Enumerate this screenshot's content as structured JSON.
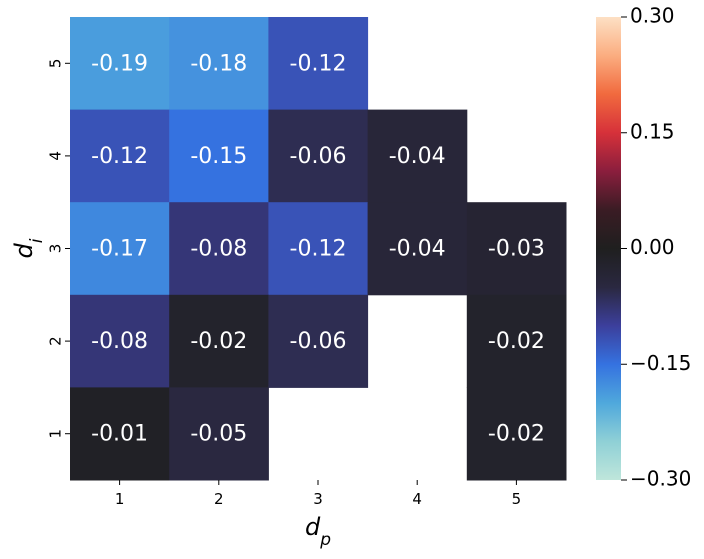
{
  "chart_data": {
    "type": "heatmap",
    "xlabel": "d_p",
    "ylabel": "d_i",
    "x_categories": [
      "1",
      "2",
      "3",
      "4",
      "5"
    ],
    "y_categories": [
      "5",
      "4",
      "3",
      "2",
      "1"
    ],
    "cells": [
      {
        "x": "1",
        "y": "5",
        "value": -0.19,
        "label": "-0.19"
      },
      {
        "x": "2",
        "y": "5",
        "value": -0.18,
        "label": "-0.18"
      },
      {
        "x": "3",
        "y": "5",
        "value": -0.12,
        "label": "-0.12"
      },
      {
        "x": "1",
        "y": "4",
        "value": -0.12,
        "label": "-0.12"
      },
      {
        "x": "2",
        "y": "4",
        "value": -0.15,
        "label": "-0.15"
      },
      {
        "x": "3",
        "y": "4",
        "value": -0.06,
        "label": "-0.06"
      },
      {
        "x": "4",
        "y": "4",
        "value": -0.04,
        "label": "-0.04"
      },
      {
        "x": "1",
        "y": "3",
        "value": -0.17,
        "label": "-0.17"
      },
      {
        "x": "2",
        "y": "3",
        "value": -0.08,
        "label": "-0.08"
      },
      {
        "x": "3",
        "y": "3",
        "value": -0.12,
        "label": "-0.12"
      },
      {
        "x": "4",
        "y": "3",
        "value": -0.04,
        "label": "-0.04"
      },
      {
        "x": "5",
        "y": "3",
        "value": -0.03,
        "label": "-0.03"
      },
      {
        "x": "1",
        "y": "2",
        "value": -0.08,
        "label": "-0.08"
      },
      {
        "x": "2",
        "y": "2",
        "value": -0.02,
        "label": "-0.02"
      },
      {
        "x": "3",
        "y": "2",
        "value": -0.06,
        "label": "-0.06"
      },
      {
        "x": "5",
        "y": "2",
        "value": -0.02,
        "label": "-0.02"
      },
      {
        "x": "1",
        "y": "1",
        "value": -0.01,
        "label": "-0.01"
      },
      {
        "x": "2",
        "y": "1",
        "value": -0.05,
        "label": "-0.05"
      },
      {
        "x": "5",
        "y": "1",
        "value": -0.02,
        "label": "-0.02"
      }
    ],
    "colorbar": {
      "vmin": -0.3,
      "vmax": 0.3,
      "ticks": [
        0.3,
        0.15,
        0.0,
        -0.15,
        -0.3
      ],
      "tick_labels": [
        "0.30",
        "0.15",
        "0.00",
        "−0.15",
        "−0.30"
      ],
      "colormap": "icefire",
      "stops": [
        "#bfe6db",
        "#8fd0d6",
        "#4fa8dc",
        "#3572e0",
        "#3c3f9c",
        "#2a2840",
        "#1f1f1f",
        "#3a1c24",
        "#8a1e3d",
        "#d6313a",
        "#f16a3e",
        "#fbad80",
        "#fde0c4"
      ]
    },
    "grid": false
  }
}
